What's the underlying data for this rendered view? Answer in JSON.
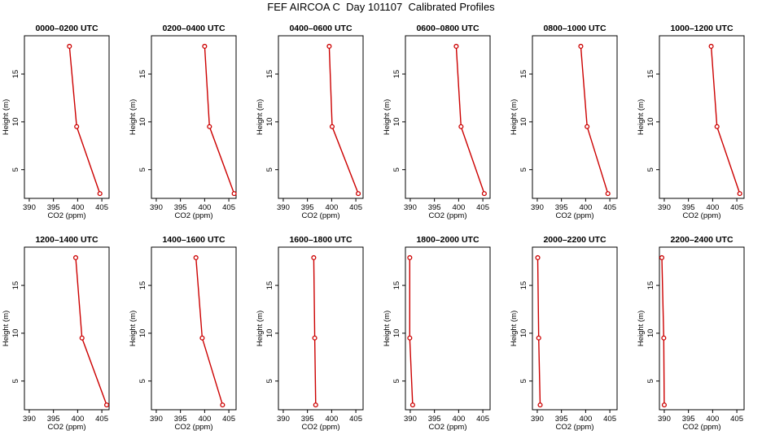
{
  "page": {
    "title": "FEF AIRCOA C  Day 101107  Calibrated Profiles"
  },
  "chart_data": [
    {
      "type": "line",
      "title": "0000–0200 UTC",
      "xlabel": "CO2 (ppm)",
      "ylabel": "Height (m)",
      "xlim": [
        389,
        406.5
      ],
      "ylim": [
        2,
        19
      ],
      "xticks": [
        390,
        395,
        400,
        405
      ],
      "yticks": [
        5,
        10,
        15
      ],
      "series": [
        {
          "x": [
            398.3,
            399.8,
            404.6
          ],
          "y": [
            17.9,
            9.5,
            2.5
          ]
        }
      ]
    },
    {
      "type": "line",
      "title": "0200–0400 UTC",
      "xlabel": "CO2 (ppm)",
      "ylabel": "Height (m)",
      "xlim": [
        389,
        406.5
      ],
      "ylim": [
        2,
        19
      ],
      "xticks": [
        390,
        395,
        400,
        405
      ],
      "yticks": [
        5,
        10,
        15
      ],
      "series": [
        {
          "x": [
            400.0,
            401.0,
            406.1
          ],
          "y": [
            17.9,
            9.5,
            2.5
          ]
        }
      ]
    },
    {
      "type": "line",
      "title": "0400–0600 UTC",
      "xlabel": "CO2 (ppm)",
      "ylabel": "Height (m)",
      "xlim": [
        389,
        406.5
      ],
      "ylim": [
        2,
        19
      ],
      "xticks": [
        390,
        395,
        400,
        405
      ],
      "yticks": [
        5,
        10,
        15
      ],
      "series": [
        {
          "x": [
            399.5,
            400.1,
            405.5
          ],
          "y": [
            17.9,
            9.5,
            2.5
          ]
        }
      ]
    },
    {
      "type": "line",
      "title": "0600–0800 UTC",
      "xlabel": "CO2 (ppm)",
      "ylabel": "Height (m)",
      "xlim": [
        389,
        406.5
      ],
      "ylim": [
        2,
        19
      ],
      "xticks": [
        390,
        395,
        400,
        405
      ],
      "yticks": [
        5,
        10,
        15
      ],
      "series": [
        {
          "x": [
            399.5,
            400.5,
            405.3
          ],
          "y": [
            17.9,
            9.5,
            2.5
          ]
        }
      ]
    },
    {
      "type": "line",
      "title": "0800–1000 UTC",
      "xlabel": "CO2 (ppm)",
      "ylabel": "Height (m)",
      "xlim": [
        389,
        406.5
      ],
      "ylim": [
        2,
        19
      ],
      "xticks": [
        390,
        395,
        400,
        405
      ],
      "yticks": [
        5,
        10,
        15
      ],
      "series": [
        {
          "x": [
            399.0,
            400.3,
            404.6
          ],
          "y": [
            17.9,
            9.5,
            2.5
          ]
        }
      ]
    },
    {
      "type": "line",
      "title": "1000–1200 UTC",
      "xlabel": "CO2 (ppm)",
      "ylabel": "Height (m)",
      "xlim": [
        389,
        406.5
      ],
      "ylim": [
        2,
        19
      ],
      "xticks": [
        390,
        395,
        400,
        405
      ],
      "yticks": [
        5,
        10,
        15
      ],
      "series": [
        {
          "x": [
            399.7,
            400.9,
            405.6
          ],
          "y": [
            17.9,
            9.5,
            2.5
          ]
        }
      ]
    },
    {
      "type": "line",
      "title": "1200–1400 UTC",
      "xlabel": "CO2 (ppm)",
      "ylabel": "Height (m)",
      "xlim": [
        389,
        406.5
      ],
      "ylim": [
        2,
        19
      ],
      "xticks": [
        390,
        395,
        400,
        405
      ],
      "yticks": [
        5,
        10,
        15
      ],
      "series": [
        {
          "x": [
            399.6,
            400.9,
            406.0
          ],
          "y": [
            17.9,
            9.5,
            2.5
          ]
        }
      ]
    },
    {
      "type": "line",
      "title": "1400–1600 UTC",
      "xlabel": "CO2 (ppm)",
      "ylabel": "Height (m)",
      "xlim": [
        389,
        406.5
      ],
      "ylim": [
        2,
        19
      ],
      "xticks": [
        390,
        395,
        400,
        405
      ],
      "yticks": [
        5,
        10,
        15
      ],
      "series": [
        {
          "x": [
            398.2,
            399.5,
            403.7
          ],
          "y": [
            17.9,
            9.5,
            2.5
          ]
        }
      ]
    },
    {
      "type": "line",
      "title": "1600–1800 UTC",
      "xlabel": "CO2 (ppm)",
      "ylabel": "Height (m)",
      "xlim": [
        389,
        406.5
      ],
      "ylim": [
        2,
        19
      ],
      "xticks": [
        390,
        395,
        400,
        405
      ],
      "yticks": [
        5,
        10,
        15
      ],
      "series": [
        {
          "x": [
            396.3,
            396.5,
            396.7
          ],
          "y": [
            17.9,
            9.5,
            2.5
          ]
        }
      ]
    },
    {
      "type": "line",
      "title": "1800–2000 UTC",
      "xlabel": "CO2 (ppm)",
      "ylabel": "Height (m)",
      "xlim": [
        389,
        406.5
      ],
      "ylim": [
        2,
        19
      ],
      "xticks": [
        390,
        395,
        400,
        405
      ],
      "yticks": [
        5,
        10,
        15
      ],
      "series": [
        {
          "x": [
            389.9,
            389.9,
            390.5
          ],
          "y": [
            17.9,
            9.5,
            2.5
          ]
        }
      ]
    },
    {
      "type": "line",
      "title": "2000–2200 UTC",
      "xlabel": "CO2 (ppm)",
      "ylabel": "Height (m)",
      "xlim": [
        389,
        406.5
      ],
      "ylim": [
        2,
        19
      ],
      "xticks": [
        390,
        395,
        400,
        405
      ],
      "yticks": [
        5,
        10,
        15
      ],
      "series": [
        {
          "x": [
            390.1,
            390.3,
            390.6
          ],
          "y": [
            17.9,
            9.5,
            2.5
          ]
        }
      ]
    },
    {
      "type": "line",
      "title": "2200–2400 UTC",
      "xlabel": "CO2 (ppm)",
      "ylabel": "Height (m)",
      "xlim": [
        389,
        406.5
      ],
      "ylim": [
        2,
        19
      ],
      "xticks": [
        390,
        395,
        400,
        405
      ],
      "yticks": [
        5,
        10,
        15
      ],
      "series": [
        {
          "x": [
            389.5,
            389.9,
            390.0
          ],
          "y": [
            17.9,
            9.5,
            2.5
          ]
        }
      ]
    }
  ],
  "colors": {
    "series": "#cc0000",
    "axis": "#000000"
  }
}
